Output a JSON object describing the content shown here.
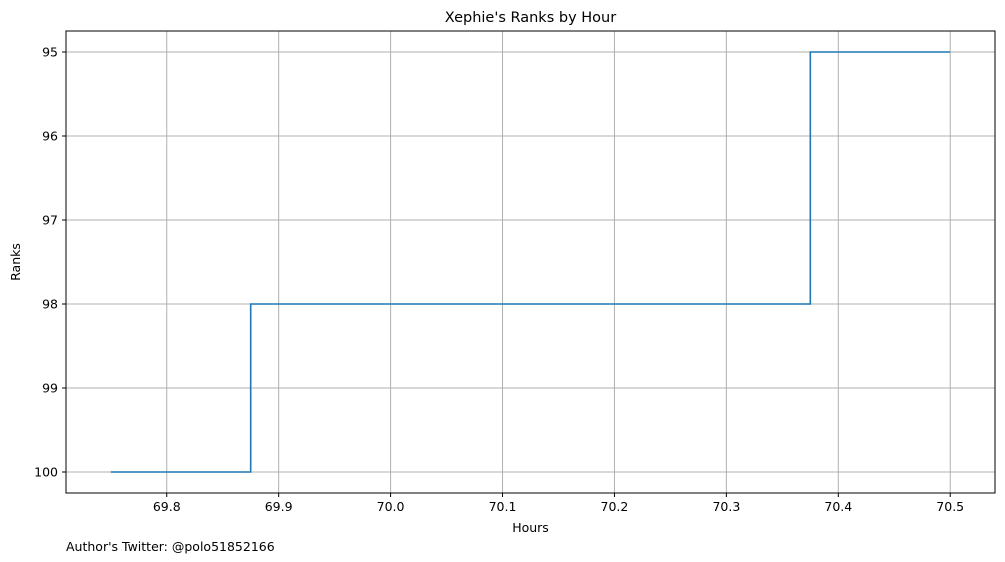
{
  "chart_data": {
    "type": "line",
    "drawstyle": "steps-post",
    "title": "Xephie's Ranks by Hour",
    "xlabel": "Hours",
    "ylabel": "Ranks",
    "x": [
      69.75,
      69.875,
      70.0,
      70.125,
      70.25,
      70.375,
      70.5
    ],
    "y": [
      100,
      98,
      98,
      98,
      98,
      95,
      95
    ],
    "xlim": [
      69.71,
      70.54
    ],
    "ylim": [
      100.25,
      94.75
    ],
    "y_inverted": true,
    "xticks": [
      69.8,
      69.9,
      70.0,
      70.1,
      70.2,
      70.3,
      70.4,
      70.5
    ],
    "xtick_labels": [
      "69.8",
      "69.9",
      "70.0",
      "70.1",
      "70.2",
      "70.3",
      "70.4",
      "70.5"
    ],
    "yticks": [
      95,
      96,
      97,
      98,
      99,
      100
    ],
    "ytick_labels": [
      "95",
      "96",
      "97",
      "98",
      "99",
      "100"
    ],
    "grid": true,
    "line_color": "#1f77b4",
    "grid_color": "#b0b0b0"
  },
  "footer": {
    "text": "Author's Twitter: @polo51852166"
  }
}
